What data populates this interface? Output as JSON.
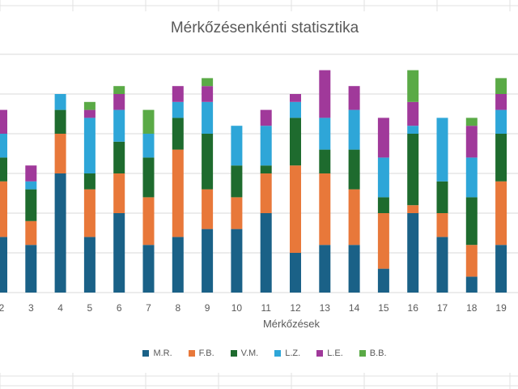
{
  "chart_data": {
    "type": "bar",
    "stacked": true,
    "title": "Mérkőzésenkénti statisztika",
    "xlabel": "Mérkőzések",
    "ylabel": "",
    "ylim": [
      0,
      30
    ],
    "grid": true,
    "legend_position": "bottom",
    "categories": [
      "2",
      "3",
      "4",
      "5",
      "6",
      "7",
      "8",
      "9",
      "10",
      "11",
      "12",
      "13",
      "14",
      "15",
      "16",
      "17",
      "18",
      "19"
    ],
    "series": [
      {
        "name": "M.R.",
        "color": "#1a6187",
        "values": [
          7,
          6,
          15,
          7,
          10,
          6,
          7,
          8,
          8,
          10,
          5,
          6,
          6,
          3,
          10,
          7,
          2,
          6
        ]
      },
      {
        "name": "F.B.",
        "color": "#e8783a",
        "values": [
          7,
          3,
          5,
          6,
          5,
          6,
          11,
          5,
          4,
          5,
          11,
          9,
          7,
          7,
          1,
          3,
          4,
          8
        ]
      },
      {
        "name": "V.M.",
        "color": "#1e6b2e",
        "values": [
          3,
          4,
          3,
          2,
          4,
          5,
          4,
          7,
          4,
          1,
          6,
          3,
          5,
          2,
          9,
          4,
          6,
          6
        ]
      },
      {
        "name": "L.Z.",
        "color": "#2ea6d8",
        "values": [
          3,
          1,
          2,
          7,
          4,
          3,
          2,
          4,
          5,
          5,
          2,
          4,
          5,
          5,
          1,
          8,
          5,
          3
        ]
      },
      {
        "name": "L.E.",
        "color": "#a0399a",
        "values": [
          3,
          2,
          0,
          1,
          2,
          0,
          2,
          2,
          0,
          2,
          1,
          6,
          3,
          5,
          3,
          0,
          4,
          2
        ]
      },
      {
        "name": "B.B.",
        "color": "#5aaa46",
        "values": [
          0,
          0,
          0,
          1,
          1,
          3,
          0,
          1,
          0,
          0,
          0,
          0,
          0,
          0,
          4,
          0,
          1,
          2
        ]
      }
    ]
  }
}
